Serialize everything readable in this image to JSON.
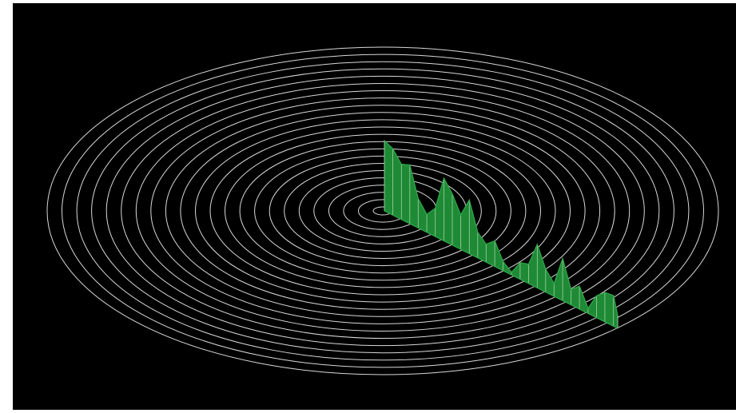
{
  "colors": {
    "background": "#000000",
    "rings": "#d8d8d8",
    "fill": "#1f8a36",
    "fill_stroke": "#2fa548",
    "grid_lines": "#b9dcb9"
  },
  "chart_data": {
    "type": "area",
    "projection": "oblique-3d",
    "ring_count": 23,
    "grid": true,
    "legend": "none",
    "xlim": [
      0,
      1
    ],
    "ylim": [
      0,
      1
    ],
    "x": [
      0.0,
      0.036,
      0.073,
      0.109,
      0.145,
      0.182,
      0.218,
      0.255,
      0.291,
      0.327,
      0.364,
      0.4,
      0.436,
      0.473,
      0.509,
      0.545,
      0.582,
      0.618,
      0.655,
      0.691,
      0.727,
      0.764,
      0.8,
      0.836,
      0.873,
      0.909,
      0.945,
      0.982,
      1.0
    ],
    "y": [
      0.55,
      0.52,
      0.43,
      0.46,
      0.23,
      0.14,
      0.22,
      0.49,
      0.4,
      0.27,
      0.42,
      0.2,
      0.14,
      0.2,
      0.07,
      0.02,
      0.13,
      0.15,
      0.34,
      0.18,
      0.1,
      0.33,
      0.12,
      0.18,
      0.04,
      0.17,
      0.23,
      0.24,
      0.1
    ]
  }
}
